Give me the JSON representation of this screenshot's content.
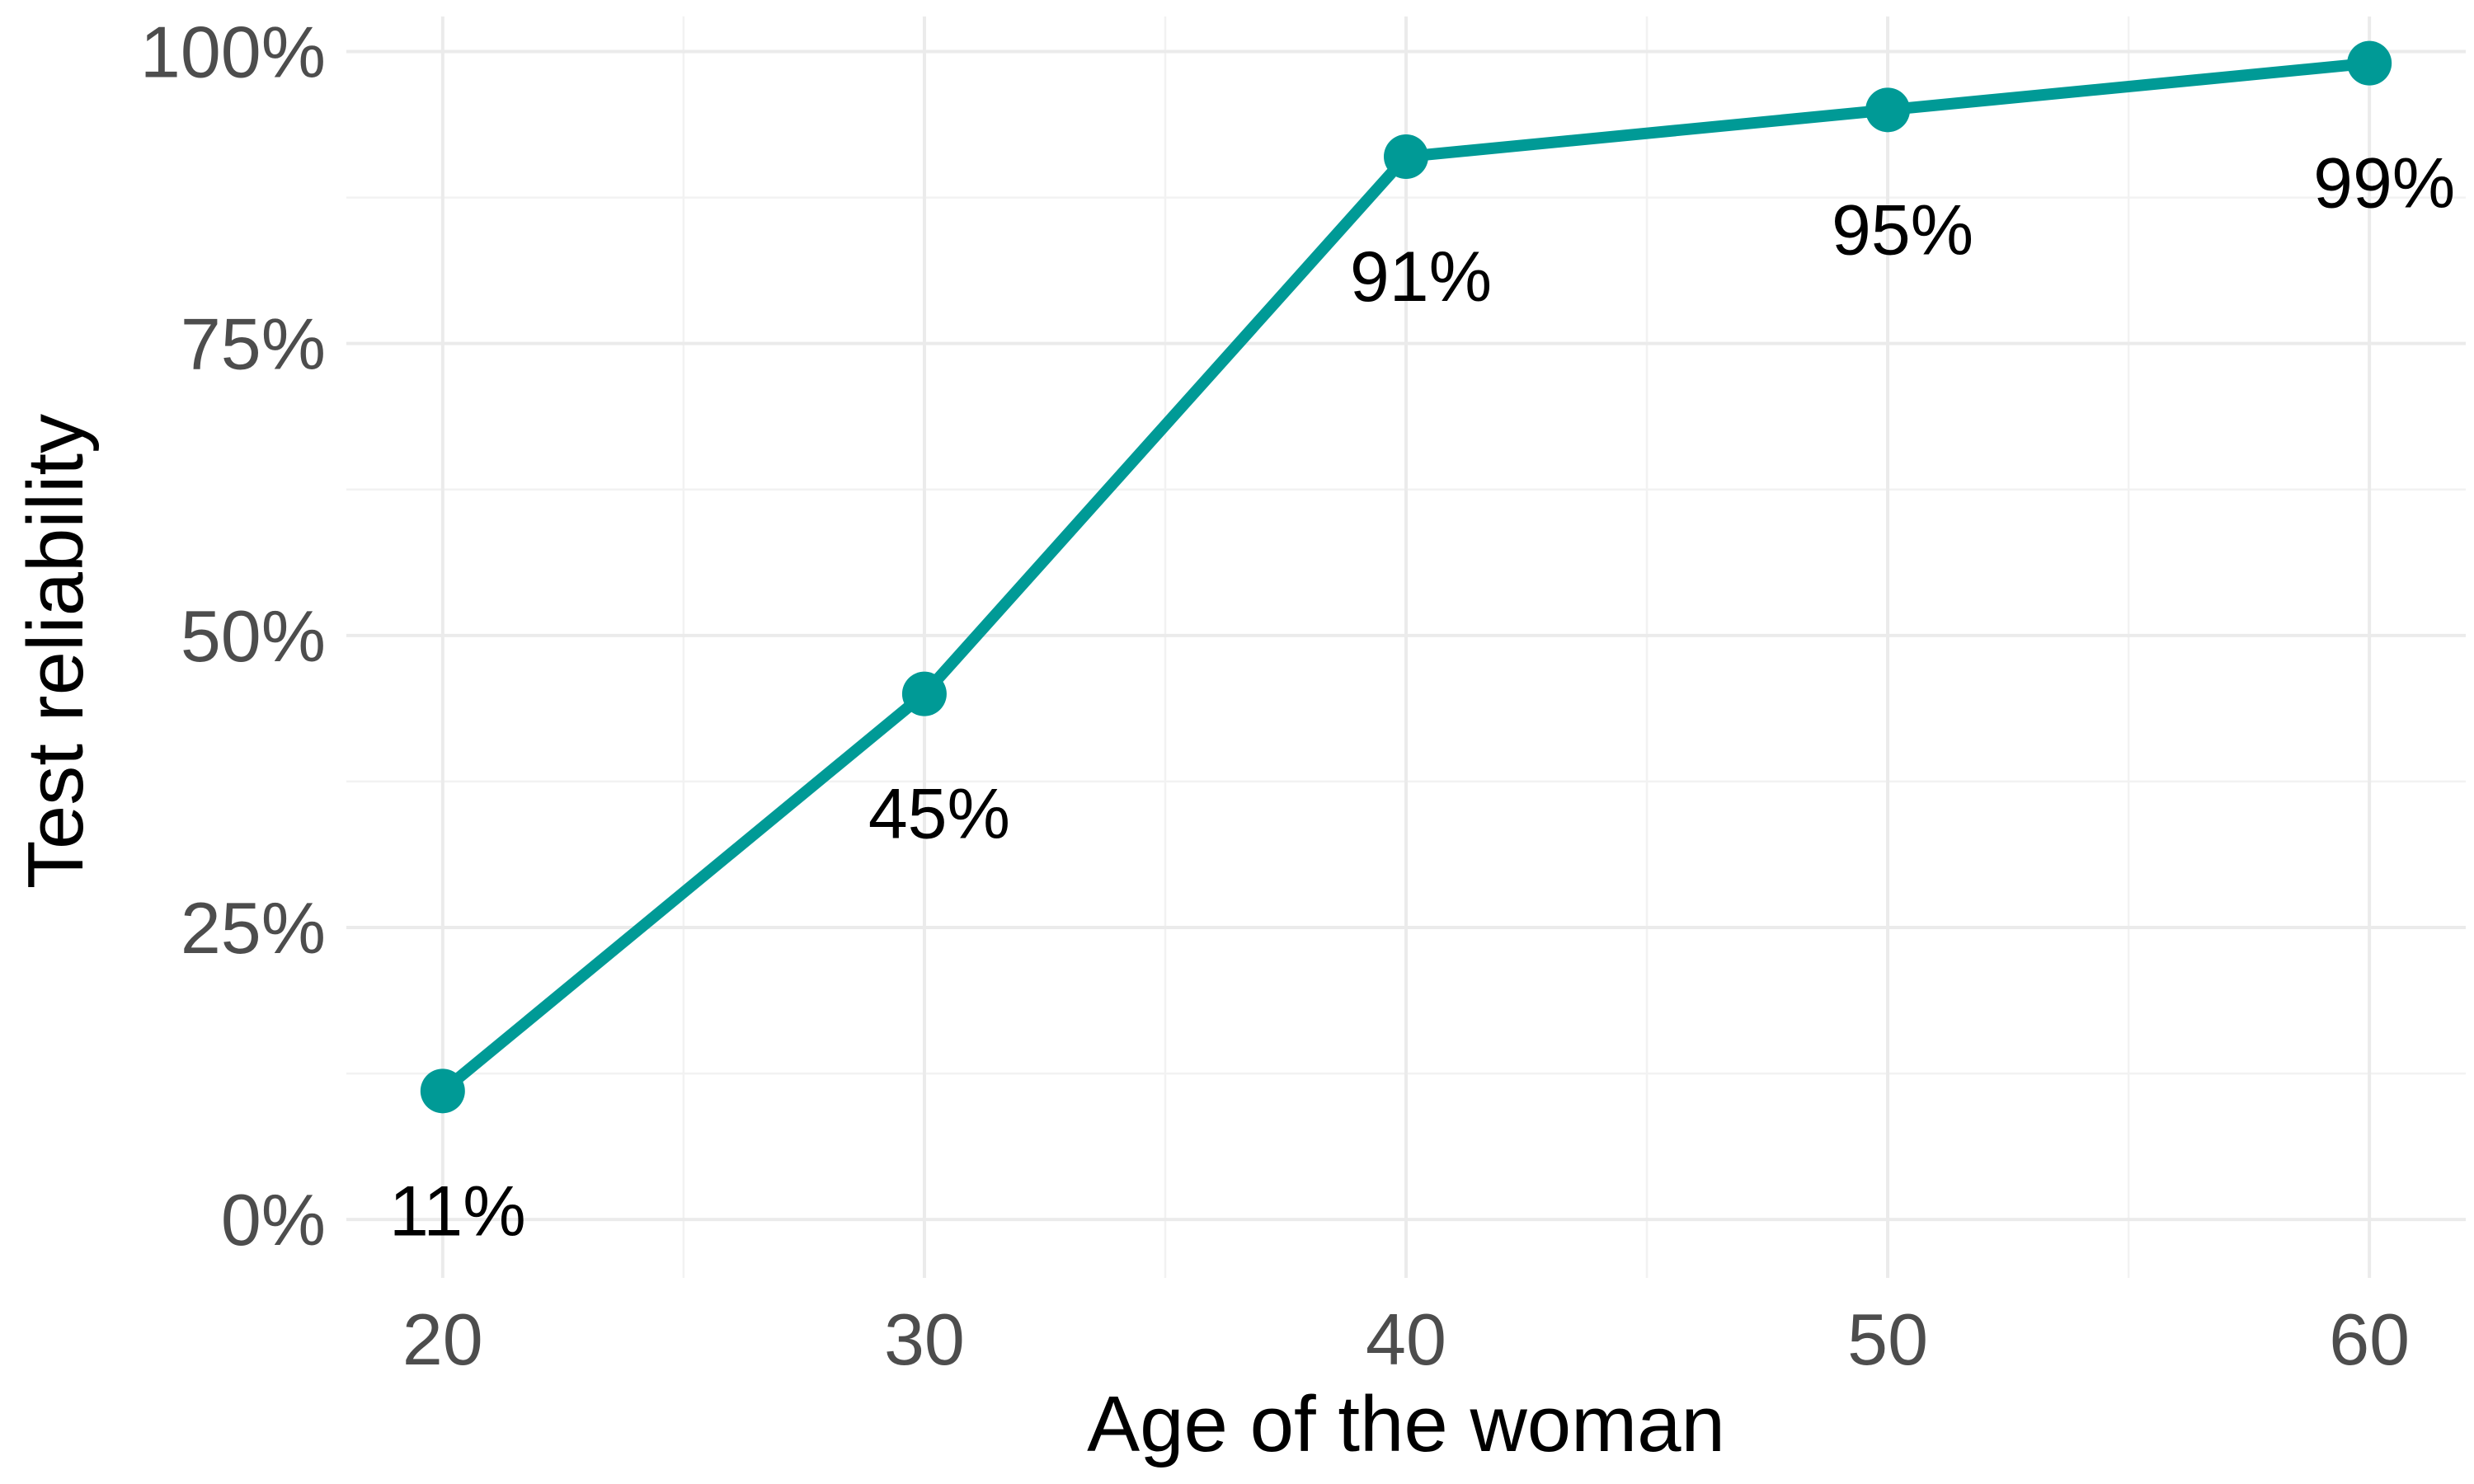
{
  "chart_data": {
    "type": "line",
    "title": "",
    "xlabel": "Age of the woman",
    "ylabel": "Test reliability",
    "x": [
      20,
      30,
      40,
      50,
      60
    ],
    "series": [
      {
        "values": [
          0.11,
          0.45,
          0.91,
          0.95,
          0.99
        ]
      }
    ],
    "data_labels": [
      "11%",
      "45%",
      "91%",
      "95%",
      "99%"
    ],
    "x_ticks": [
      20,
      30,
      40,
      50,
      60
    ],
    "x_tick_labels": [
      "20",
      "30",
      "40",
      "50",
      "60"
    ],
    "y_ticks": [
      0,
      0.25,
      0.5,
      0.75,
      1.0
    ],
    "y_tick_labels": [
      "0%",
      "25%",
      "50%",
      "75%",
      "100%"
    ],
    "xlim": [
      18,
      62
    ],
    "ylim": [
      -0.05,
      1.03
    ],
    "grid": true,
    "colors": {
      "series": "#009a96"
    }
  }
}
